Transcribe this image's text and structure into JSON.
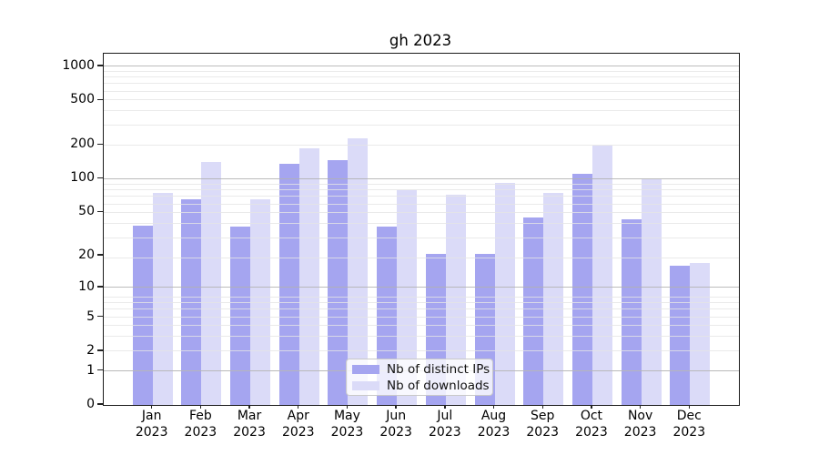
{
  "chart_data": {
    "type": "bar",
    "title": "gh 2023",
    "categories": [
      "Jan 2023",
      "Feb 2023",
      "Mar 2023",
      "Apr 2023",
      "May 2023",
      "Jun 2023",
      "Jul 2023",
      "Aug 2023",
      "Sep 2023",
      "Oct 2023",
      "Nov 2023",
      "Dec 2023"
    ],
    "series": [
      {
        "name": "Nb of distinct IPs",
        "color": "#a5a5f0",
        "values": [
          38,
          66,
          37,
          137,
          146,
          37,
          21,
          21,
          45,
          110,
          43,
          16
        ]
      },
      {
        "name": "Nb of downloads",
        "color": "#dbdbf8",
        "values": [
          75,
          141,
          65,
          186,
          230,
          79,
          72,
          92,
          75,
          199,
          99,
          17
        ]
      }
    ],
    "xlabel": "",
    "ylabel": "",
    "yscale": "log1p",
    "yticks": [
      0,
      1,
      2,
      5,
      10,
      20,
      50,
      100,
      200,
      500,
      1000
    ],
    "major_gridline_values": [
      1,
      10,
      100,
      1000
    ],
    "ylim": [
      0,
      1296
    ],
    "grid": true,
    "legend_position": "lower center",
    "frame_color": "#1a1a1a"
  }
}
